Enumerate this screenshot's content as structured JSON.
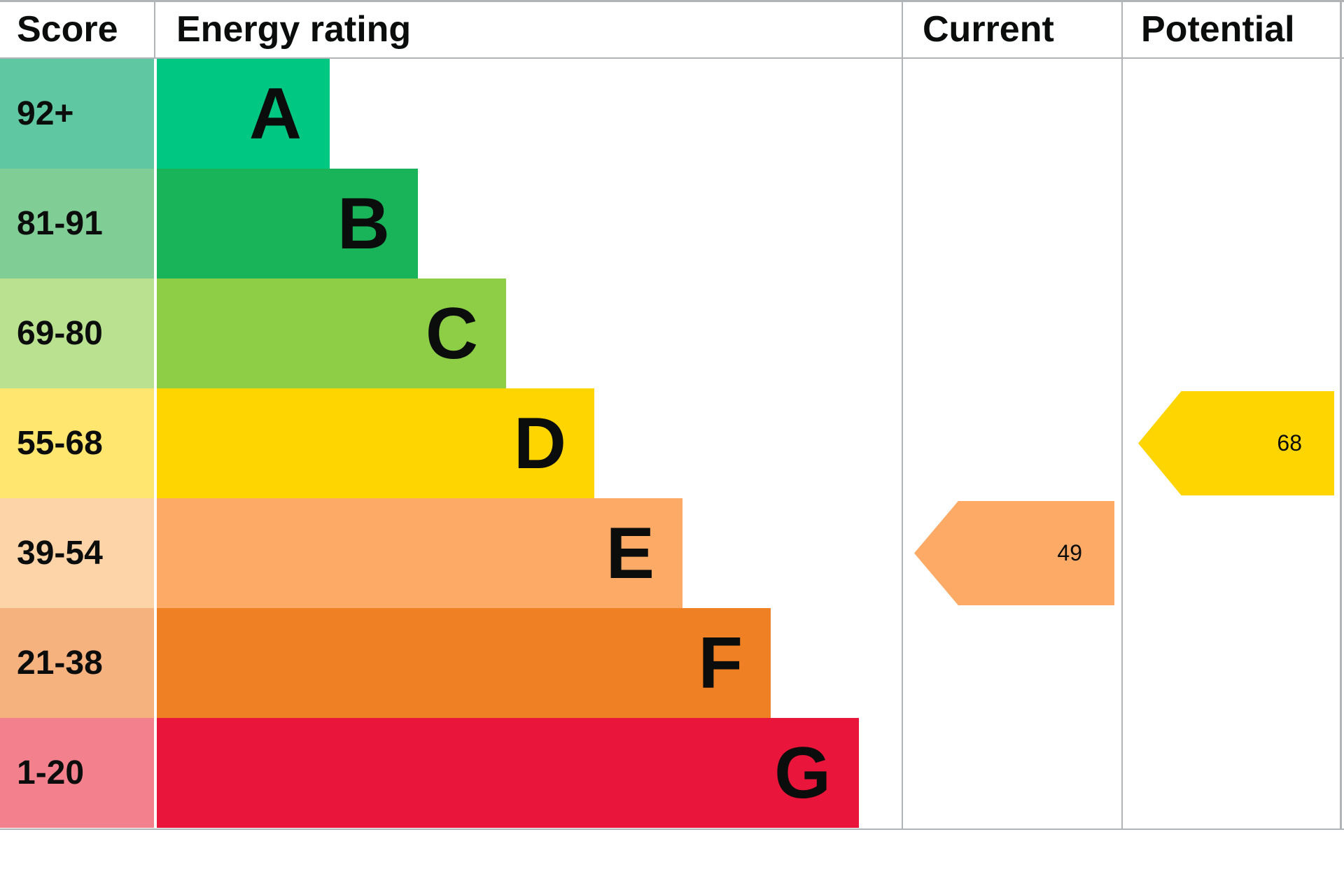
{
  "header": {
    "score": "Score",
    "energy_rating": "Energy rating",
    "current": "Current",
    "potential": "Potential"
  },
  "colors": {
    "border": "#b1b4b6",
    "text": "#0b0c0c",
    "background": "#ffffff"
  },
  "chart_data": {
    "type": "bar",
    "subtype": "epc-energy-rating",
    "title": "Energy rating",
    "columns": [
      "Score",
      "Energy rating",
      "Current",
      "Potential"
    ],
    "bands": [
      {
        "letter": "A",
        "score": "92+",
        "bar_color": "#00c781",
        "score_color": "#5fc8a2"
      },
      {
        "letter": "B",
        "score": "81-91",
        "bar_color": "#19b459",
        "score_color": "#80cd96"
      },
      {
        "letter": "C",
        "score": "69-80",
        "bar_color": "#8dce46",
        "score_color": "#b9e18f"
      },
      {
        "letter": "D",
        "score": "55-68",
        "bar_color": "#ffd500",
        "score_color": "#ffe66e"
      },
      {
        "letter": "E",
        "score": "39-54",
        "bar_color": "#fcaa65",
        "score_color": "#fdd4a8"
      },
      {
        "letter": "F",
        "score": "21-38",
        "bar_color": "#ef8023",
        "score_color": "#f5b27f"
      },
      {
        "letter": "G",
        "score": "1-20",
        "bar_color": "#e9153b",
        "score_color": "#f2808d"
      }
    ],
    "current": {
      "label": "49",
      "value": 49,
      "band": "E",
      "color": "#fcaa65"
    },
    "potential": {
      "label": "68",
      "value": 68,
      "band": "D",
      "color": "#ffd500"
    }
  }
}
